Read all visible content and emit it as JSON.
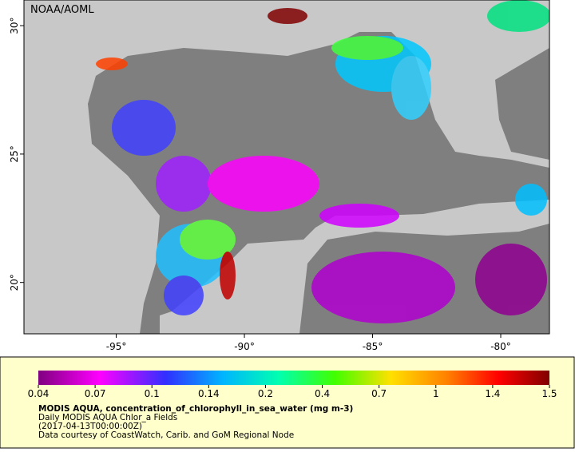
{
  "map": {
    "credit": "NOAA/AOML",
    "lon_range": [
      -98.6,
      -78.1
    ],
    "lat_range": [
      18.0,
      31.0
    ],
    "lon_ticks": [
      {
        "value": -95,
        "label": "-95°"
      },
      {
        "value": -90,
        "label": "-90°"
      },
      {
        "value": -85,
        "label": "-85°"
      },
      {
        "value": -80,
        "label": "-80°"
      }
    ],
    "lat_ticks": [
      {
        "value": 20,
        "label": "20°"
      },
      {
        "value": 25,
        "label": "25°"
      },
      {
        "value": 30,
        "label": "30°"
      }
    ],
    "colorbar": {
      "ticks": [
        0.04,
        0.07,
        0.1,
        0.14,
        0.2,
        0.4,
        0.7,
        1,
        1.4,
        1.5
      ]
    },
    "caption": {
      "title": "MODIS AQUA, concentration_of_chlorophyll_in_sea_water (mg m-3)",
      "lines": [
        "Daily MODIS AQUA Chlor_a Fields",
        "(2017-04-13T00:00:00Z)",
        "Data courtesy of CoastWatch, Carib. and GoM Regional Node"
      ]
    }
  }
}
